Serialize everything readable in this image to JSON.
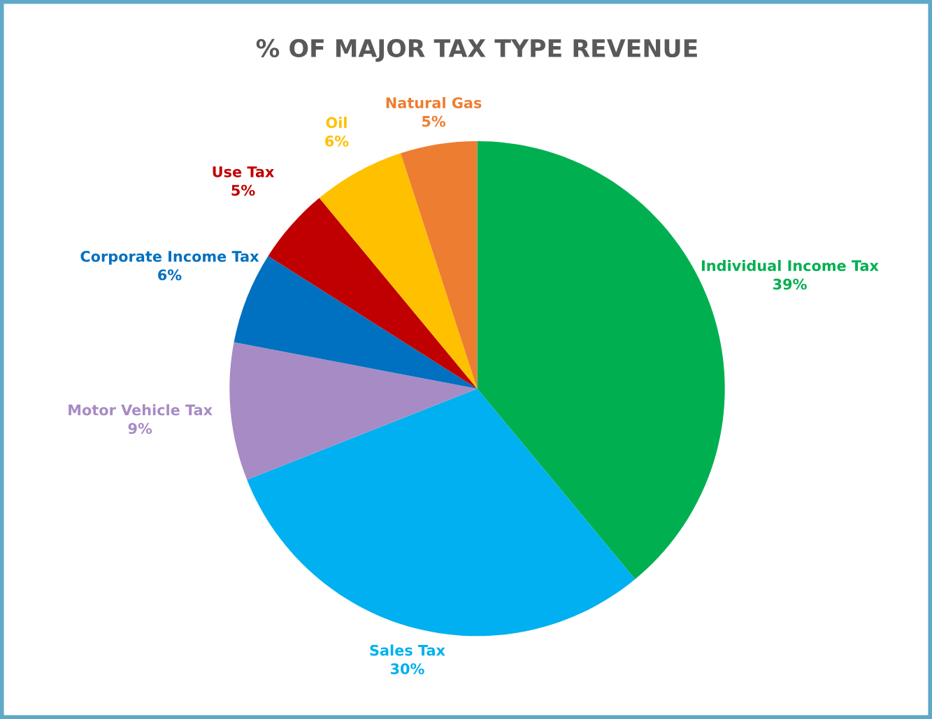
{
  "chart_data": {
    "type": "pie",
    "title": "% OF MAJOR TAX TYPE REVENUE",
    "categories": [
      "Individual Income Tax",
      "Sales Tax",
      "Motor Vehicle Tax",
      "Corporate Income Tax",
      "Use Tax",
      "Oil",
      "Natural Gas"
    ],
    "values": [
      39,
      30,
      9,
      6,
      5,
      6,
      5
    ],
    "colors": [
      "#00b050",
      "#00b0f0",
      "#a78bc4",
      "#0070c0",
      "#c00000",
      "#ffc000",
      "#ed7d31"
    ],
    "value_labels": [
      "39%",
      "30%",
      "9%",
      "6%",
      "5%",
      "6%",
      "5%"
    ],
    "data_labels": true
  }
}
